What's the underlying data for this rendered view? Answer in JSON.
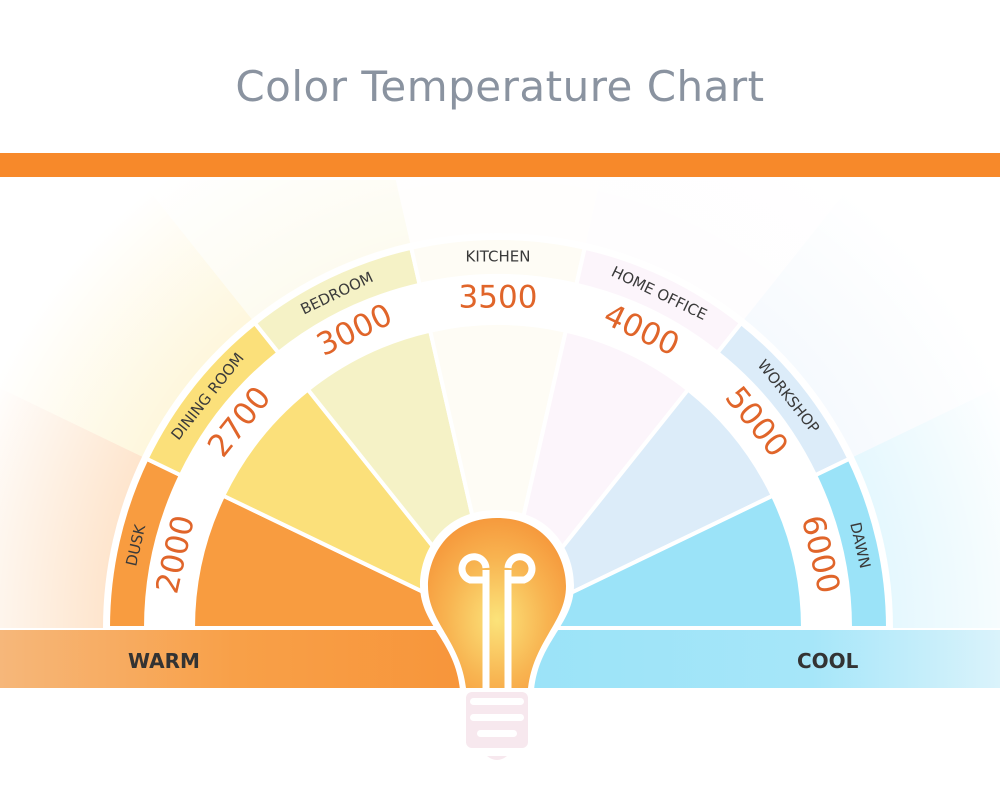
{
  "title": "Color Temperature Chart",
  "colors": {
    "accent_bar": "#f7892a",
    "title": "#8a93a0",
    "number": "#e0652a",
    "warm": "#f89c40",
    "cool": "#9be3f8"
  },
  "segments": [
    {
      "label": "DUSK",
      "kelvin": "2000",
      "color": "#f89c40"
    },
    {
      "label": "DINING ROOM",
      "kelvin": "2700",
      "color": "#fbe07a"
    },
    {
      "label": "BEDROOM",
      "kelvin": "3000",
      "color": "#f5f2c6"
    },
    {
      "label": "KITCHEN",
      "kelvin": "3500",
      "color": "#fefcf5"
    },
    {
      "label": "HOME OFFICE",
      "kelvin": "4000",
      "color": "#fcf5fb"
    },
    {
      "label": "WORKSHOP",
      "kelvin": "5000",
      "color": "#dcecf9"
    },
    {
      "label": "DAWN",
      "kelvin": "6000",
      "color": "#9be3f8"
    }
  ],
  "scale": {
    "warm_label": "WARM",
    "cool_label": "COOL"
  },
  "center_icon": "light-bulb-icon"
}
